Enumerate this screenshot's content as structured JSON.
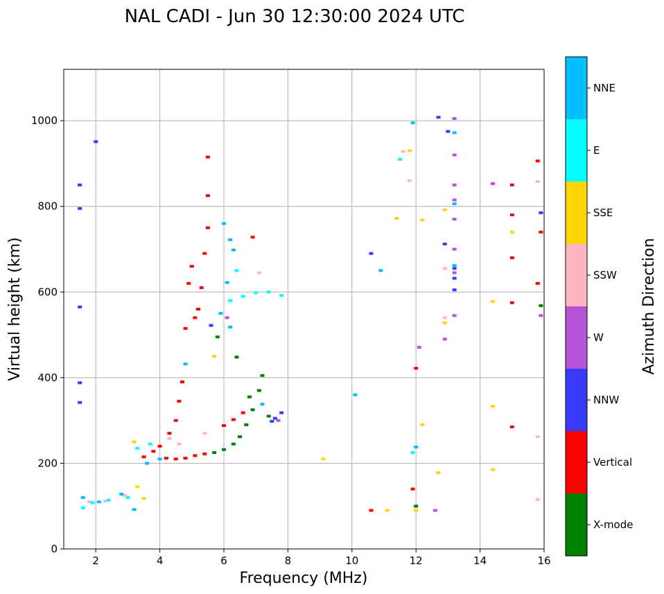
{
  "chart_data": {
    "type": "scatter",
    "title": "NAL CADI - Jun 30 12:30:00 2024 UTC",
    "xlabel": "Frequency (MHz)",
    "ylabel": "Virtual height (km)",
    "xlim": [
      1,
      16
    ],
    "ylim": [
      0,
      1120
    ],
    "xticks": [
      2,
      4,
      6,
      8,
      10,
      12,
      14,
      16
    ],
    "yticks": [
      0,
      200,
      400,
      600,
      800,
      1000
    ],
    "grid": true,
    "colorbar": {
      "label": "Azimuth Direction",
      "categories": [
        {
          "name": "X-mode",
          "color": "#008000"
        },
        {
          "name": "Vertical",
          "color": "#ff0000"
        },
        {
          "name": "NNW",
          "color": "#3a3aff"
        },
        {
          "name": "W",
          "color": "#b455d6"
        },
        {
          "name": "SSW",
          "color": "#ffb6c1"
        },
        {
          "name": "SSE",
          "color": "#ffd700"
        },
        {
          "name": "E",
          "color": "#00ffff"
        },
        {
          "name": "NNE",
          "color": "#00bfff"
        }
      ]
    },
    "series": [
      {
        "name": "X-mode",
        "points": [
          [
            5.7,
            225
          ],
          [
            6.0,
            232
          ],
          [
            6.3,
            245
          ],
          [
            6.5,
            262
          ],
          [
            6.7,
            290
          ],
          [
            6.9,
            325
          ],
          [
            7.1,
            370
          ],
          [
            7.2,
            405
          ],
          [
            7.4,
            310
          ],
          [
            6.8,
            355
          ],
          [
            5.8,
            495
          ],
          [
            6.4,
            448
          ],
          [
            12.0,
            100
          ],
          [
            15.9,
            568
          ]
        ]
      },
      {
        "name": "Vertical",
        "points": [
          [
            3.5,
            215
          ],
          [
            3.8,
            228
          ],
          [
            4.0,
            240
          ],
          [
            4.2,
            212
          ],
          [
            4.5,
            210
          ],
          [
            4.8,
            212
          ],
          [
            5.1,
            218
          ],
          [
            5.4,
            222
          ],
          [
            4.3,
            270
          ],
          [
            4.5,
            300
          ],
          [
            4.6,
            345
          ],
          [
            4.7,
            390
          ],
          [
            4.8,
            515
          ],
          [
            5.1,
            540
          ],
          [
            5.2,
            560
          ],
          [
            4.9,
            620
          ],
          [
            5.0,
            660
          ],
          [
            5.3,
            610
          ],
          [
            5.4,
            690
          ],
          [
            5.5,
            750
          ],
          [
            5.5,
            915
          ],
          [
            5.5,
            825
          ],
          [
            6.9,
            728
          ],
          [
            6.0,
            288
          ],
          [
            6.3,
            302
          ],
          [
            6.6,
            318
          ],
          [
            10.6,
            90
          ],
          [
            11.9,
            140
          ],
          [
            12.0,
            422
          ],
          [
            15.0,
            850
          ],
          [
            15.0,
            780
          ],
          [
            15.0,
            680
          ],
          [
            15.0,
            575
          ],
          [
            15.0,
            285
          ],
          [
            15.8,
            906
          ],
          [
            15.9,
            740
          ],
          [
            15.8,
            620
          ]
        ]
      },
      {
        "name": "NNW",
        "points": [
          [
            1.5,
            850
          ],
          [
            1.5,
            795
          ],
          [
            1.5,
            565
          ],
          [
            1.5,
            388
          ],
          [
            1.5,
            342
          ],
          [
            2.0,
            951
          ],
          [
            7.6,
            305
          ],
          [
            7.8,
            318
          ],
          [
            7.5,
            298
          ],
          [
            10.6,
            690
          ],
          [
            12.7,
            1008
          ],
          [
            12.9,
            712
          ],
          [
            13.0,
            975
          ],
          [
            13.2,
            655
          ],
          [
            13.2,
            632
          ],
          [
            13.2,
            605
          ],
          [
            15.9,
            785
          ],
          [
            5.6,
            522
          ]
        ]
      },
      {
        "name": "W",
        "points": [
          [
            7.7,
            300
          ],
          [
            6.1,
            540
          ],
          [
            12.1,
            471
          ],
          [
            12.6,
            90
          ],
          [
            12.9,
            490
          ],
          [
            13.2,
            1005
          ],
          [
            13.2,
            920
          ],
          [
            13.2,
            850
          ],
          [
            13.2,
            815
          ],
          [
            13.2,
            770
          ],
          [
            13.2,
            700
          ],
          [
            13.2,
            645
          ],
          [
            13.2,
            545
          ],
          [
            14.4,
            853
          ],
          [
            15.9,
            545
          ]
        ]
      },
      {
        "name": "SSW",
        "points": [
          [
            1.8,
            110
          ],
          [
            2.3,
            112
          ],
          [
            2.9,
            125
          ],
          [
            4.3,
            258
          ],
          [
            4.6,
            245
          ],
          [
            5.4,
            270
          ],
          [
            11.6,
            928
          ],
          [
            11.8,
            860
          ],
          [
            12.9,
            655
          ],
          [
            12.9,
            540
          ],
          [
            15.8,
            858
          ],
          [
            15.8,
            262
          ],
          [
            15.8,
            115
          ],
          [
            7.1,
            645
          ]
        ]
      },
      {
        "name": "SSE",
        "points": [
          [
            3.3,
            145
          ],
          [
            3.5,
            118
          ],
          [
            3.2,
            250
          ],
          [
            9.1,
            210
          ],
          [
            11.1,
            90
          ],
          [
            11.4,
            772
          ],
          [
            11.8,
            930
          ],
          [
            12.2,
            768
          ],
          [
            12.2,
            290
          ],
          [
            12.7,
            178
          ],
          [
            12.9,
            792
          ],
          [
            12.9,
            528
          ],
          [
            12.0,
            90
          ],
          [
            14.4,
            578
          ],
          [
            14.4,
            333
          ],
          [
            14.4,
            185
          ],
          [
            15.0,
            740
          ],
          [
            5.7,
            450
          ]
        ]
      },
      {
        "name": "E",
        "points": [
          [
            1.6,
            96
          ],
          [
            1.9,
            108
          ],
          [
            2.4,
            114
          ],
          [
            3.0,
            120
          ],
          [
            3.3,
            235
          ],
          [
            3.7,
            245
          ],
          [
            6.2,
            580
          ],
          [
            6.6,
            590
          ],
          [
            7.0,
            598
          ],
          [
            7.4,
            600
          ],
          [
            7.8,
            592
          ],
          [
            11.5,
            910
          ],
          [
            11.9,
            225
          ],
          [
            6.4,
            650
          ],
          [
            6.2,
            580
          ]
        ]
      },
      {
        "name": "NNE",
        "points": [
          [
            1.6,
            120
          ],
          [
            2.1,
            110
          ],
          [
            2.8,
            128
          ],
          [
            3.2,
            92
          ],
          [
            3.6,
            200
          ],
          [
            4.0,
            210
          ],
          [
            4.8,
            432
          ],
          [
            5.9,
            550
          ],
          [
            6.0,
            760
          ],
          [
            6.2,
            722
          ],
          [
            6.3,
            698
          ],
          [
            6.1,
            622
          ],
          [
            6.2,
            518
          ],
          [
            10.1,
            360
          ],
          [
            10.9,
            650
          ],
          [
            11.9,
            995
          ],
          [
            12.0,
            238
          ],
          [
            13.2,
            972
          ],
          [
            13.2,
            806
          ],
          [
            13.2,
            662
          ],
          [
            7.2,
            338
          ]
        ]
      }
    ]
  }
}
